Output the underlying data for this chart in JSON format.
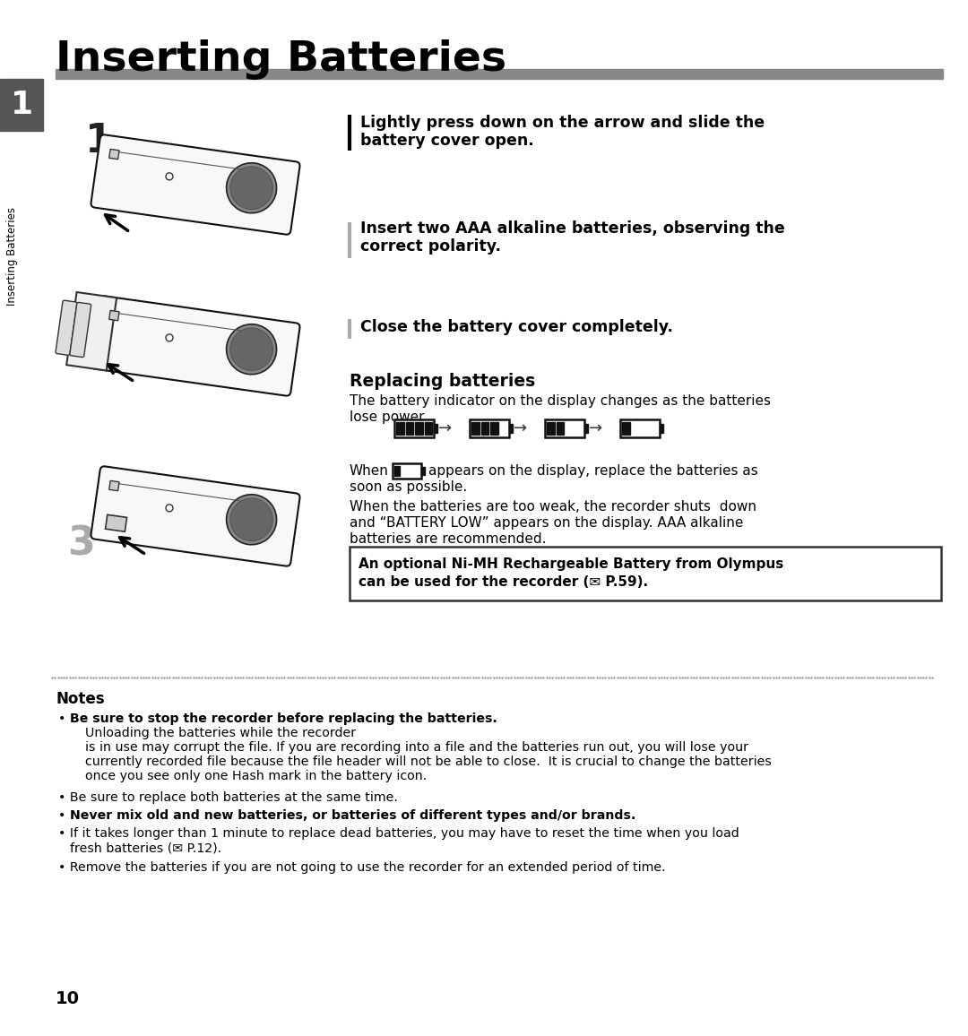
{
  "title": "Inserting Batteries",
  "page_number": "10",
  "background_color": "#ffffff",
  "step1_text_line1": "Lightly press down on the arrow and slide the",
  "step1_text_line2": "battery cover open.",
  "step2_text_line1": "Insert two AAA alkaline batteries, observing the",
  "step2_text_line2": "correct polarity.",
  "step3_text": "Close the battery cover completely.",
  "replacing_title": "Replacing batteries",
  "replacing_body1_line1": "The battery indicator on the display changes as the batteries",
  "replacing_body1_line2": "lose power.",
  "when_line1": "appears on the display, replace the batteries as",
  "when_line2": "soon as possible.",
  "body3_line1": "When the batteries are too weak, the recorder shuts  down",
  "body3_line2": "and “BATTERY LOW” appears on the display. AAA alkaline",
  "body3_line3": "batteries are recommended.",
  "box_line1": "An optional Ni-MH Rechargeable Battery from Olympus",
  "box_line2": "can be used for the recorder (✉ P.59).",
  "notes_title": "Notes",
  "note1_bold": "Be sure to stop the recorder before replacing the batteries.",
  "note1_rest_line1": " Unloading the batteries while the recorder",
  "note1_rest_line2": "is in use may corrupt the file. If you are recording into a file and the batteries run out, you will lose your",
  "note1_rest_line3": "currently recorded file because the file header will not be able to close.  It is crucial to change the batteries",
  "note1_rest_line4": "once you see only one Hash mark in the battery icon.",
  "note2": "Be sure to replace both batteries at the same time.",
  "note3_bold": "Never mix old and new batteries, or batteries of different types and/or brands.",
  "note4_line1": "If it takes longer than 1 minute to replace dead batteries, you may have to reset the time when you load",
  "note4_line2": "fresh batteries (✉ P.12).",
  "note5": "Remove the batteries if you are not going to use the recorder for an extended period of time.",
  "sidebar_text": "Inserting Batteries",
  "sidebar_num": "1"
}
